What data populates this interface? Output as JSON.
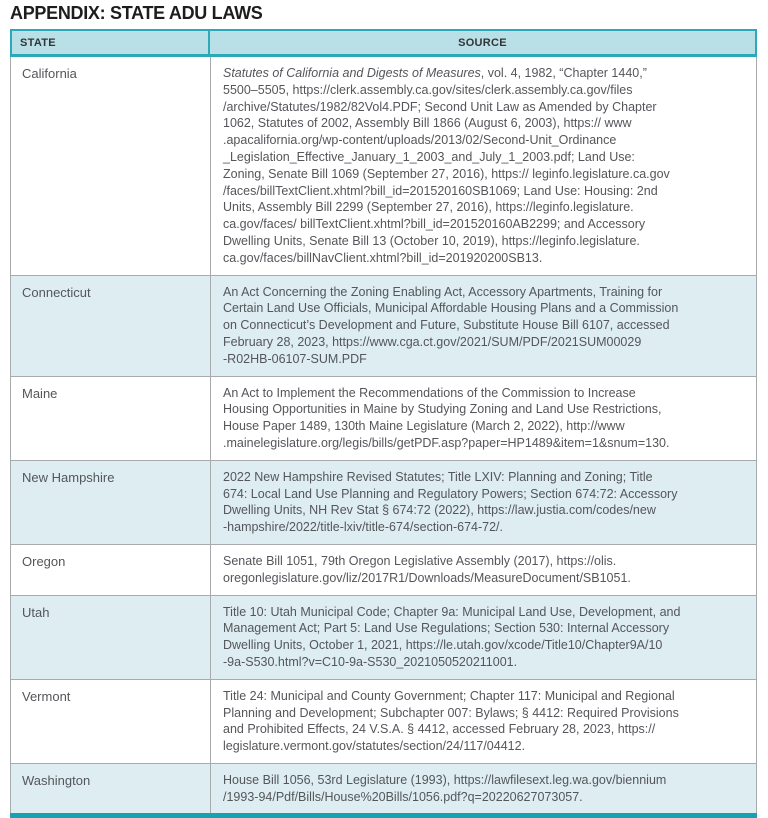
{
  "page": {
    "title": "APPENDIX: STATE ADU LAWS"
  },
  "colors": {
    "teal": "#2ba9b8",
    "header_fill": "#b8e0e6",
    "zebra_fill": "#ddedf2",
    "bottom_bar": "#16a2b3",
    "grid_gray": "#a8aaad"
  },
  "table": {
    "headers": {
      "state": "STATE",
      "source": "SOURCE"
    },
    "rows": [
      {
        "state": "California",
        "source_italic": "Statutes of California and Digests of Measures",
        "source": ", vol. 4, 1982, “Chapter 1440,”\n5500–5505, https://clerk.assembly.ca.gov/sites/clerk.assembly.ca.gov/files\n/archive/Statutes/1982/82Vol4.PDF; Second Unit Law as Amended by Chapter\n1062, Statutes of 2002, Assembly Bill 1866 (August 6, 2003), https:// www\n.apacalifornia.org/wp-content/uploads/2013/02/Second-Unit_Ordinance\n_Legislation_Effective_January_1_2003_and_July_1_2003.pdf; Land Use:\nZoning, Senate Bill 1069 (September 27, 2016), https:// leginfo.legislature.ca.gov\n/faces/billTextClient.xhtml?bill_id=201520160SB1069; Land Use: Housing: 2nd\nUnits, Assembly Bill 2299 (September 27, 2016), https://leginfo.legislature.\nca.gov/faces/ billTextClient.xhtml?bill_id=201520160AB2299; and Accessory\nDwelling Units, Senate Bill 13 (October 10, 2019), https://leginfo.legislature.\nca.gov/faces/billNavClient.xhtml?bill_id=201920200SB13."
      },
      {
        "state": "Connecticut",
        "source": "An Act Concerning the Zoning Enabling Act, Accessory Apartments, Training for\nCertain Land Use Officials, Municipal Affordable Housing Plans and a Commission\non Connecticut’s Development and Future, Substitute House Bill 6107, accessed\nFebruary 28, 2023, https://www.cga.ct.gov/2021/SUM/PDF/2021SUM00029\n-R02HB-06107-SUM.PDF"
      },
      {
        "state": "Maine",
        "source": "An Act to Implement the Recommendations of the Commission to Increase\nHousing Opportunities in Maine by Studying Zoning and Land Use Restrictions,\nHouse Paper 1489, 130th Maine Legislature (March 2, 2022), http://www\n.mainelegislature.org/legis/bills/getPDF.asp?paper=HP1489&item=1&snum=130."
      },
      {
        "state": "New Hampshire",
        "source": "2022 New Hampshire Revised Statutes; Title LXIV: Planning and Zoning; Title\n674: Local Land Use Planning and Regulatory Powers; Section 674:72: Accessory\nDwelling Units, NH Rev Stat § 674:72 (2022), https://law.justia.com/codes/new\n-hampshire/2022/title-lxiv/title-674/section-674-72/."
      },
      {
        "state": "Oregon",
        "source": "Senate Bill 1051, 79th Oregon Legislative Assembly (2017), https://olis.\noregonlegislature.gov/liz/2017R1/Downloads/MeasureDocument/SB1051."
      },
      {
        "state": "Utah",
        "source": "Title 10: Utah Municipal Code; Chapter 9a: Municipal Land Use, Development, and\nManagement Act; Part 5: Land Use Regulations; Section 530: Internal Accessory\nDwelling Units, October 1, 2021, https://le.utah.gov/xcode/Title10/Chapter9A/10\n-9a-S530.html?v=C10-9a-S530_2021050520211001."
      },
      {
        "state": "Vermont",
        "source": "Title 24: Municipal and County Government; Chapter 117: Municipal and Regional\nPlanning and Development; Subchapter 007: Bylaws; § 4412: Required Provisions\nand Prohibited Effects, 24 V.S.A. § 4412, accessed February 28, 2023, https://\nlegislature.vermont.gov/statutes/section/24/117/04412."
      },
      {
        "state": "Washington",
        "source": "House Bill 1056, 53rd Legislature (1993), https://lawfilesext.leg.wa.gov/biennium\n/1993-94/Pdf/Bills/House%20Bills/1056.pdf?q=20220627073057."
      }
    ]
  }
}
